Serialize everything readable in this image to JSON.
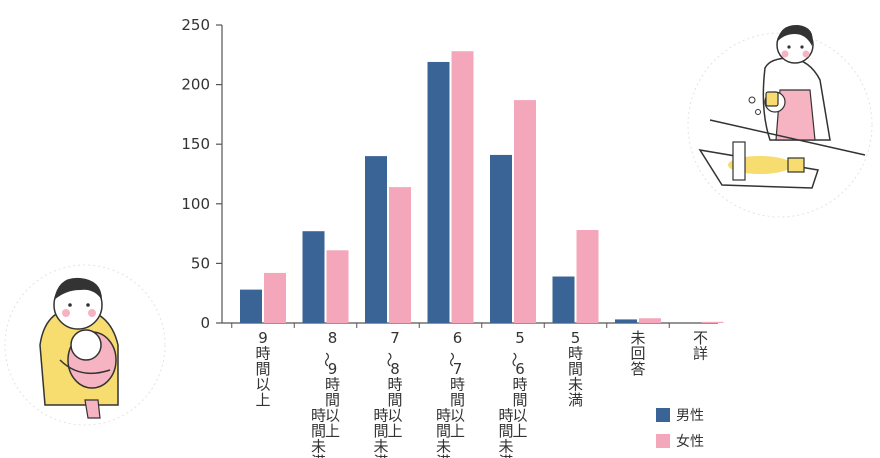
{
  "chart_data": {
    "type": "bar",
    "categories": [
      "9時間以上",
      "8〜9時間未満",
      "7〜8時間未満",
      "6〜7時間未満",
      "5〜6時間未満",
      "5時間未満",
      "未回答",
      "不詳"
    ],
    "category_label_lines": [
      [
        "9",
        "時",
        "間",
        "以",
        "上"
      ],
      [
        "8",
        "〜",
        "9",
        "時",
        "間",
        "以",
        "上",
        "時",
        "間",
        "未",
        "満"
      ],
      [
        "7",
        "〜",
        "8",
        "時",
        "間",
        "以",
        "上",
        "時",
        "間",
        "未",
        "満"
      ],
      [
        "6",
        "〜",
        "7",
        "時",
        "間",
        "以",
        "上",
        "時",
        "間",
        "未",
        "満"
      ],
      [
        "5",
        "〜",
        "6",
        "時",
        "間",
        "以",
        "上",
        "時",
        "間",
        "未",
        "満"
      ],
      [
        "5",
        "時",
        "間",
        "未",
        "満"
      ],
      [
        "未",
        "回",
        "答"
      ],
      [
        "不",
        "詳"
      ]
    ],
    "series": [
      {
        "name": "男性",
        "color": "#3a6396",
        "values": [
          28,
          77,
          140,
          219,
          141,
          39,
          3,
          0
        ]
      },
      {
        "name": "女性",
        "color": "#f4a7bb",
        "values": [
          42,
          61,
          114,
          228,
          187,
          78,
          4,
          1
        ]
      }
    ],
    "yticks": [
      "0",
      "50",
      "100",
      "150",
      "200",
      "250"
    ],
    "ylim": [
      0,
      250
    ],
    "legend_position": "bottom-right",
    "grid": false
  }
}
